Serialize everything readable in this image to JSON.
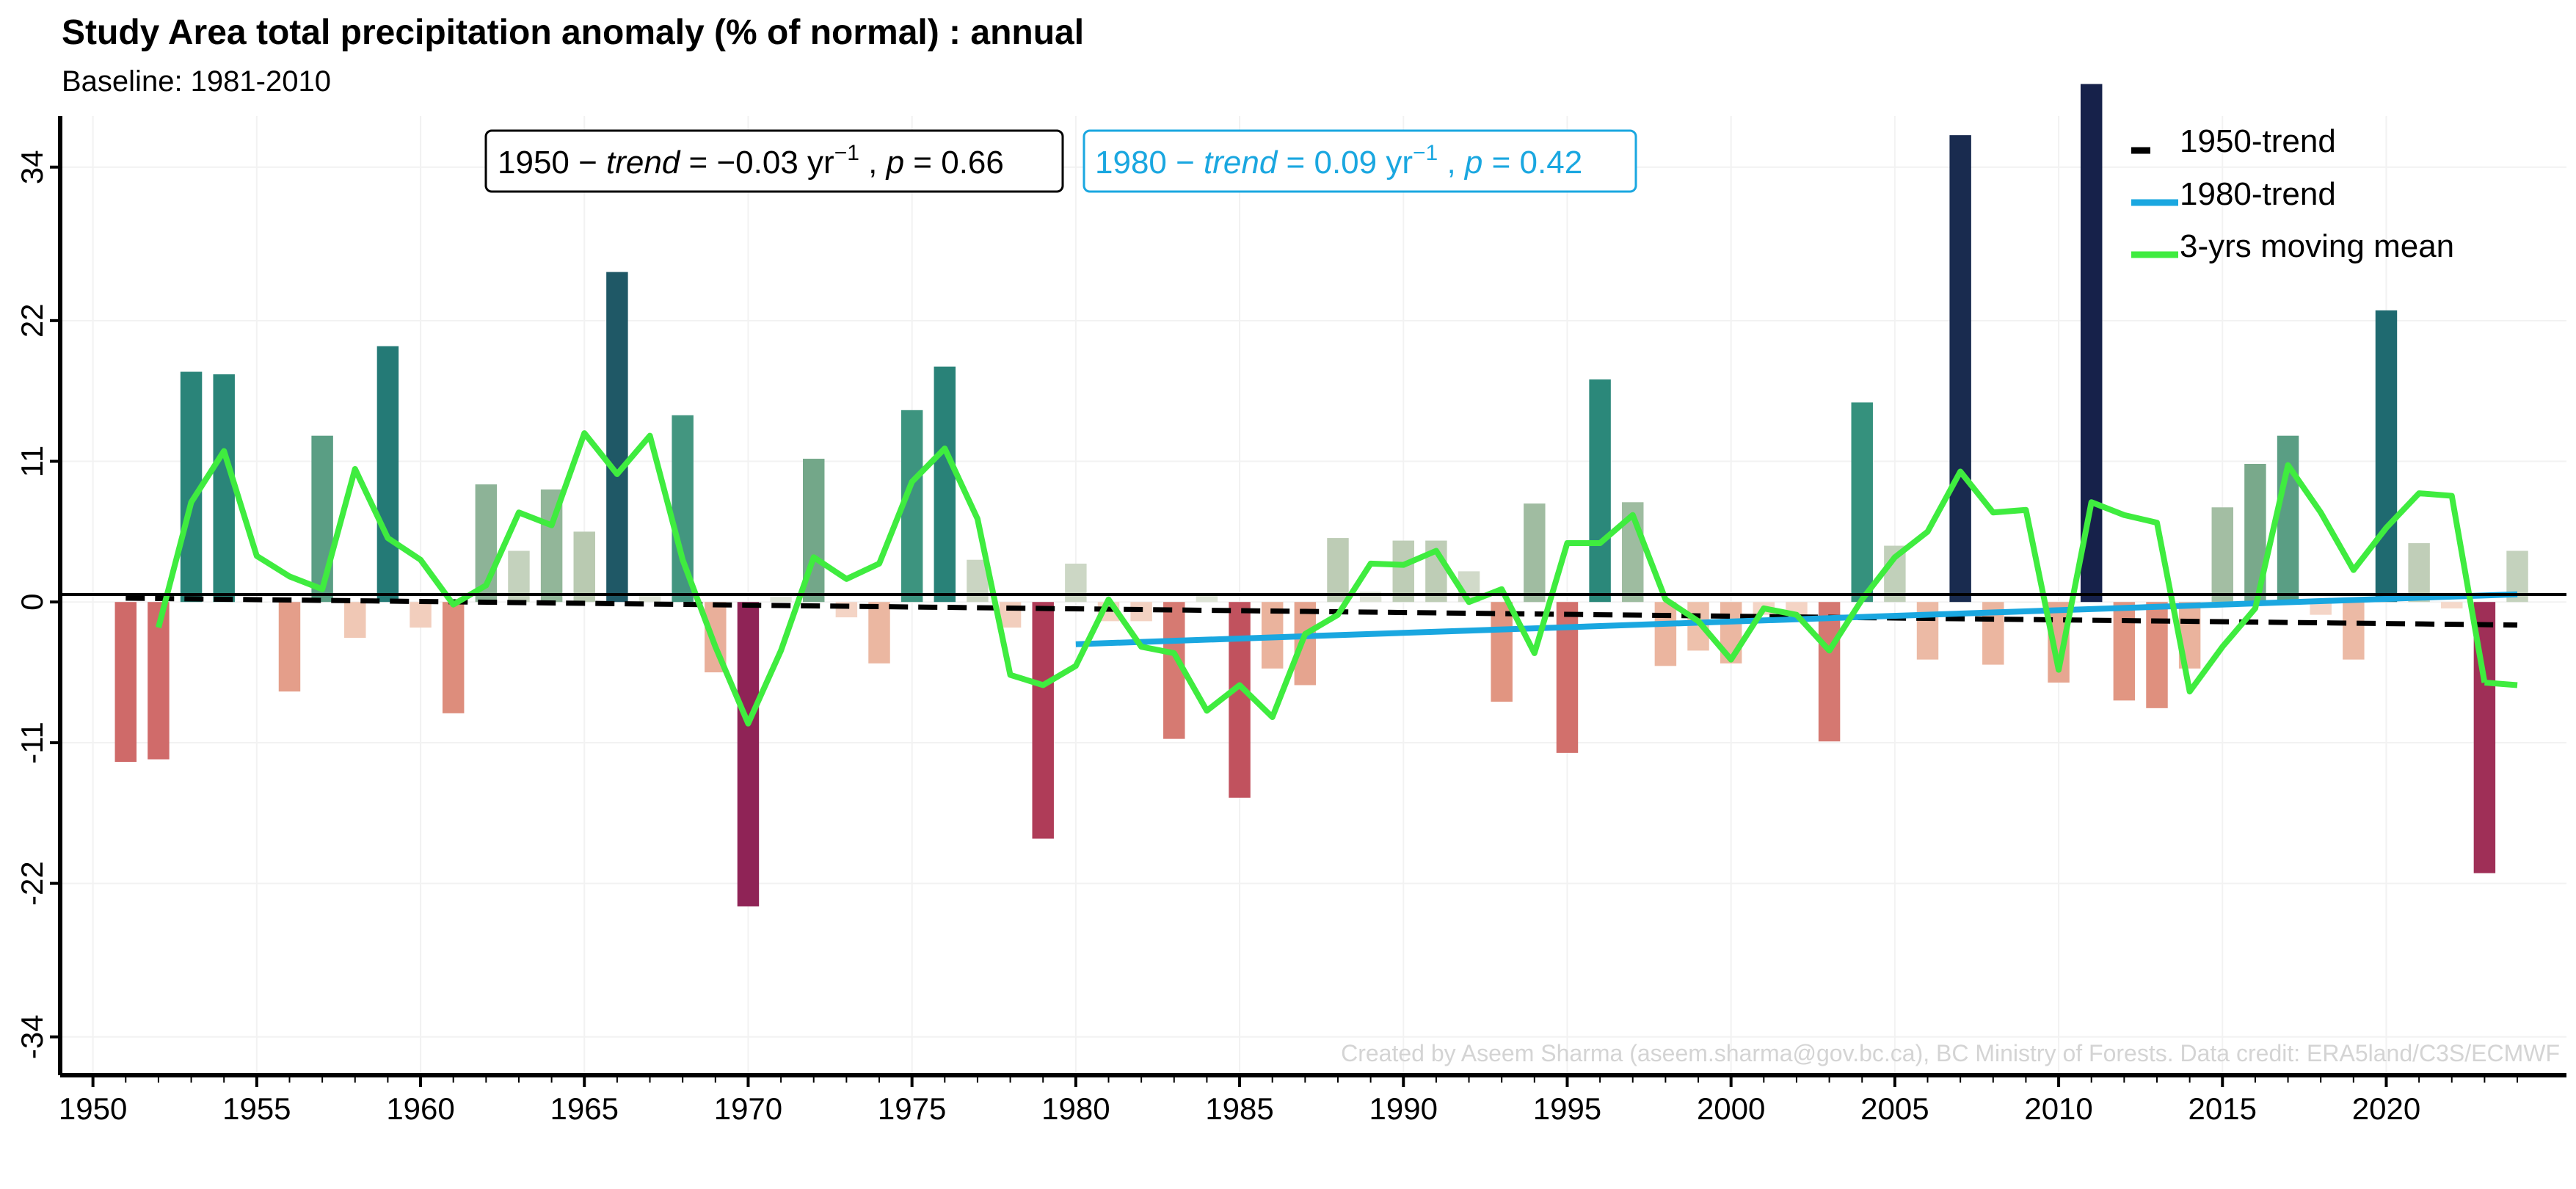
{
  "chart_data": {
    "type": "bar",
    "title": "Study Area total precipitation anomaly (% of normal) : annual",
    "subtitle": "Baseline: 1981-2010",
    "xlabel": "",
    "ylabel": "",
    "xlim": [
      1949,
      2025.5
    ],
    "ylim": [
      -37,
      38
    ],
    "x_ticks": [
      1950,
      1955,
      1960,
      1965,
      1970,
      1975,
      1980,
      1985,
      1990,
      1995,
      2000,
      2005,
      2010,
      2015,
      2020
    ],
    "y_ticks": [
      34,
      22,
      11,
      0,
      -11,
      -22,
      -34
    ],
    "grid": true,
    "years": [
      1951,
      1952,
      1953,
      1954,
      1955,
      1956,
      1957,
      1958,
      1959,
      1960,
      1961,
      1962,
      1963,
      1964,
      1965,
      1966,
      1967,
      1968,
      1969,
      1970,
      1971,
      1972,
      1973,
      1974,
      1975,
      1976,
      1977,
      1978,
      1979,
      1980,
      1981,
      1982,
      1983,
      1984,
      1985,
      1986,
      1987,
      1988,
      1989,
      1990,
      1991,
      1992,
      1993,
      1994,
      1995,
      1996,
      1997,
      1998,
      1999,
      2000,
      2001,
      2002,
      2003,
      2004,
      2005,
      2006,
      2007,
      2008,
      2009,
      2010,
      2011,
      2012,
      2013,
      2014,
      2015,
      2016,
      2017,
      2018,
      2019,
      2020,
      2021,
      2022,
      2023,
      2024
    ],
    "values": [
      -12.5,
      -12.3,
      18.0,
      17.8,
      0,
      -7.0,
      13.0,
      -2.8,
      20.0,
      -2.0,
      -8.7,
      9.2,
      4.0,
      8.8,
      5.5,
      25.8,
      0.5,
      14.6,
      -5.5,
      -23.8,
      0.4,
      11.2,
      -1.2,
      -4.8,
      15.0,
      18.4,
      3.3,
      -2.0,
      -18.5,
      3.0,
      -1.5,
      -1.5,
      -10.7,
      0.6,
      -15.3,
      -5.2,
      -6.5,
      5.0,
      0.8,
      4.8,
      4.8,
      2.4,
      -7.8,
      7.7,
      -11.8,
      17.4,
      7.8,
      -5.0,
      -3.8,
      -4.8,
      -1.0,
      -1.2,
      -10.9,
      15.6,
      4.4,
      -4.5,
      36.5,
      -4.9,
      0,
      -6.3,
      40.5,
      -7.7,
      -8.3,
      -5.2,
      7.4,
      10.8,
      13.0,
      -1.0,
      -4.5,
      22.8,
      4.6,
      -0.5,
      -21.2,
      4.0
    ],
    "series": [
      {
        "name": "1950-trend",
        "color": "#000000",
        "style": "dashed",
        "x": [
          1951,
          2024
        ],
        "y": [
          0.3,
          -1.8
        ]
      },
      {
        "name": "1980-trend",
        "color": "#1aa7e0",
        "style": "solid",
        "x": [
          1980,
          2024
        ],
        "y": [
          -3.3,
          0.6
        ]
      },
      {
        "name": "3-yrs moving mean",
        "color": "#3fec3f",
        "style": "solid",
        "x": [
          1952,
          1953,
          1954,
          1955,
          1956,
          1957,
          1958,
          1959,
          1960,
          1961,
          1962,
          1963,
          1964,
          1965,
          1966,
          1967,
          1968,
          1969,
          1970,
          1971,
          1972,
          1973,
          1974,
          1975,
          1976,
          1977,
          1978,
          1979,
          1980,
          1981,
          1982,
          1983,
          1984,
          1985,
          1986,
          1987,
          1988,
          1989,
          1990,
          1991,
          1992,
          1993,
          1994,
          1995,
          1996,
          1997,
          1998,
          1999,
          2000,
          2001,
          2002,
          2003,
          2004,
          2005,
          2006,
          2007,
          2008,
          2009,
          2010,
          2011,
          2012,
          2013,
          2014,
          2015,
          2016,
          2017,
          2018,
          2019,
          2020,
          2021,
          2022,
          2023
        ],
        "y": [
          -2.0,
          7.8,
          11.8,
          3.6,
          2.0,
          1.0,
          10.4,
          5.0,
          3.3,
          -0.2,
          1.3,
          7.0,
          6.0,
          13.2,
          10.0,
          13.0,
          3.3,
          -3.5,
          -9.5,
          -3.8,
          3.5,
          1.8,
          3.0,
          9.4,
          12.0,
          6.5,
          -5.7,
          -6.5,
          -5.0,
          0.2,
          -3.5,
          -4.0,
          -8.5,
          -6.5,
          -9.0,
          -2.5,
          -1.0,
          3.0,
          2.9,
          4.0,
          0,
          1.0,
          -4.0,
          4.6,
          4.6,
          6.8,
          0.2,
          -1.5,
          -4.5,
          -0.5,
          -1.0,
          -3.8,
          0.2,
          3.5,
          5.5,
          10.2,
          7.0,
          7.2,
          -5.3,
          7.8,
          6.8,
          6.2,
          -7.0,
          -3.5,
          -0.5,
          10.7,
          7.0,
          2.5,
          5.8,
          8.5,
          8.3,
          -6.3
        ]
      },
      {
        "name": "3-yrs moving mean (end)",
        "hidden_legend": true,
        "color": "#3fec3f",
        "x": [
          2023,
          2024
        ],
        "y": [
          -6.3,
          -6.5
        ]
      }
    ],
    "annotations": [
      {
        "label_prefix": "1950 − ",
        "label_trend": "trend",
        "label_mid": " = −0.03 yr",
        "label_exp": "−1",
        "label_p": " , ",
        "p_label": "p",
        "p_value": " = 0.66",
        "color": "#000000"
      },
      {
        "label_prefix": "1980 − ",
        "label_trend": "trend",
        "label_mid": " = 0.09 yr",
        "label_exp": "−1",
        "label_p": " , ",
        "p_label": "p",
        "p_value": " = 0.42",
        "color": "#1aa7e0"
      }
    ],
    "legend": {
      "placement": "top-right",
      "items": [
        "1950-trend",
        "1980-trend",
        "3-yrs moving mean"
      ]
    },
    "credit": "Created by Aseem Sharma (aseem.sharma@gov.bc.ca), BC Ministry of Forests. Data credit: ERA5land/C3S/ECMWF"
  }
}
